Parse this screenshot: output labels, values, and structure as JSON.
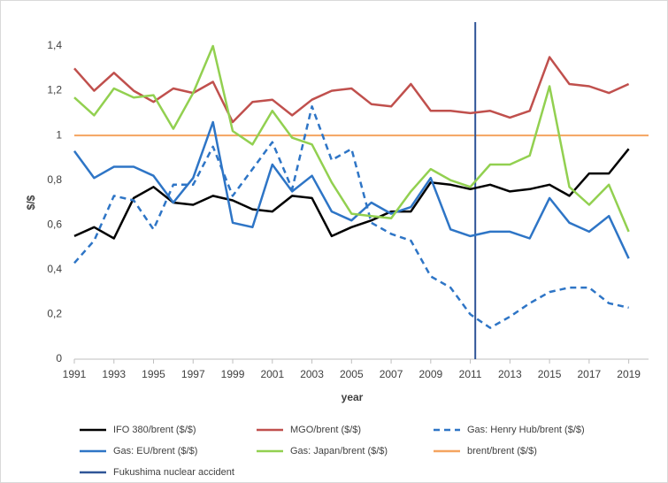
{
  "chart_data": {
    "type": "line",
    "ylabel": "$/$",
    "xlabel": "year",
    "x": [
      1991,
      1992,
      1993,
      1994,
      1995,
      1996,
      1997,
      1998,
      1999,
      2000,
      2001,
      2002,
      2003,
      2004,
      2005,
      2006,
      2007,
      2008,
      2009,
      2010,
      2011,
      2012,
      2013,
      2014,
      2015,
      2016,
      2017,
      2018,
      2019
    ],
    "xlim": [
      1991,
      2020
    ],
    "xticks": [
      1991,
      1993,
      1995,
      1997,
      1999,
      2001,
      2003,
      2005,
      2007,
      2009,
      2011,
      2013,
      2015,
      2017,
      2019
    ],
    "ylim": [
      0,
      1.4
    ],
    "yticks": [
      0,
      {
        "value": 0.2,
        "label": "0,2"
      },
      {
        "value": 0.4,
        "label": "0,4"
      },
      {
        "value": 0.6,
        "label": "0,6"
      },
      {
        "value": 0.8,
        "label": "0,8"
      },
      1,
      {
        "value": 1.2,
        "label": "1,2"
      },
      {
        "value": 1.4,
        "label": "1,4"
      }
    ],
    "grid": false,
    "series": [
      {
        "name": "IFO 380/brent ($/$)",
        "color": "#000000",
        "dash": false,
        "values": [
          0.55,
          0.59,
          0.54,
          0.72,
          0.77,
          0.7,
          0.69,
          0.73,
          0.71,
          0.67,
          0.66,
          0.73,
          0.72,
          0.55,
          0.59,
          0.62,
          0.66,
          0.66,
          0.79,
          0.78,
          0.76,
          0.78,
          0.75,
          0.76,
          0.78,
          0.73,
          0.83,
          0.83,
          0.94
        ]
      },
      {
        "name": "MGO/brent ($/$)",
        "color": "#c0504d",
        "dash": false,
        "values": [
          1.3,
          1.2,
          1.28,
          1.2,
          1.15,
          1.21,
          1.19,
          1.24,
          1.06,
          1.15,
          1.16,
          1.09,
          1.16,
          1.2,
          1.21,
          1.14,
          1.13,
          1.23,
          1.11,
          1.11,
          1.1,
          1.11,
          1.08,
          1.11,
          1.35,
          1.23,
          1.22,
          1.19,
          1.23
        ]
      },
      {
        "name": "Gas: Henry Hub/brent ($/$)",
        "color": "#2e75c6",
        "dash": true,
        "values": [
          0.43,
          0.53,
          0.73,
          0.71,
          0.58,
          0.78,
          0.78,
          0.95,
          0.73,
          0.85,
          0.97,
          0.76,
          1.13,
          0.89,
          0.94,
          0.61,
          0.56,
          0.53,
          0.37,
          0.32,
          0.2,
          0.14,
          0.19,
          0.25,
          0.3,
          0.32,
          0.32,
          0.25,
          0.23
        ]
      },
      {
        "name": "Gas: EU/brent ($/$)",
        "color": "#2e75c6",
        "dash": false,
        "values": [
          0.93,
          0.81,
          0.86,
          0.86,
          0.82,
          0.7,
          0.81,
          1.06,
          0.61,
          0.59,
          0.87,
          0.75,
          0.82,
          0.66,
          0.62,
          0.7,
          0.65,
          0.68,
          0.81,
          0.58,
          0.55,
          0.57,
          0.57,
          0.54,
          0.72,
          0.61,
          0.57,
          0.64,
          0.45
        ]
      },
      {
        "name": "Gas: Japan/brent ($/$)",
        "color": "#92d050",
        "dash": false,
        "values": [
          1.17,
          1.09,
          1.21,
          1.17,
          1.18,
          1.03,
          1.19,
          1.4,
          1.02,
          0.96,
          1.11,
          0.99,
          0.96,
          0.79,
          0.65,
          0.64,
          0.63,
          0.75,
          0.85,
          0.8,
          0.77,
          0.87,
          0.87,
          0.91,
          1.22,
          0.77,
          0.69,
          0.78,
          0.57
        ]
      }
    ],
    "ref_lines": [
      {
        "name": "brent/brent ($/$)",
        "color": "#f4a460",
        "y": 1
      },
      {
        "name": "Fukushima nuclear accident",
        "color": "#2f5597",
        "x": 2011.25
      }
    ]
  }
}
